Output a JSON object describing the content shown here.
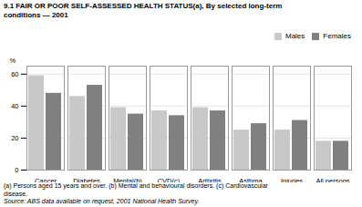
{
  "chart_data": {
    "type": "bar",
    "title": "9.1  FAIR OR POOR SELF-ASSESSED HEALTH STATUS(a), By selected long-term",
    "subtitle": "conditions — 2001",
    "categories": [
      "Cancer",
      "Diabetes",
      "Mental(b)",
      "CVD(c)",
      "Arthritis",
      "Asthma",
      "Injuries",
      "All persons"
    ],
    "series": [
      {
        "name": "Males",
        "color": "#c8c8c8",
        "values": [
          59,
          46,
          39,
          37,
          39,
          25,
          25,
          18
        ]
      },
      {
        "name": "Females",
        "color": "#808080",
        "values": [
          48,
          53,
          35,
          34,
          37,
          29,
          31,
          18
        ]
      }
    ],
    "ylabel": "%",
    "ylim": [
      0,
      65
    ],
    "yticks": [
      0,
      20,
      40,
      60
    ],
    "grid": true,
    "legend": "upper right",
    "annotations": [
      "(a) Persons aged 15 years and over.  (b) Mental and behavioural disorders.  (c) Cardiovascular",
      "disease.",
      "Source: ABS data available on request, 2001 National Health Survey."
    ]
  }
}
